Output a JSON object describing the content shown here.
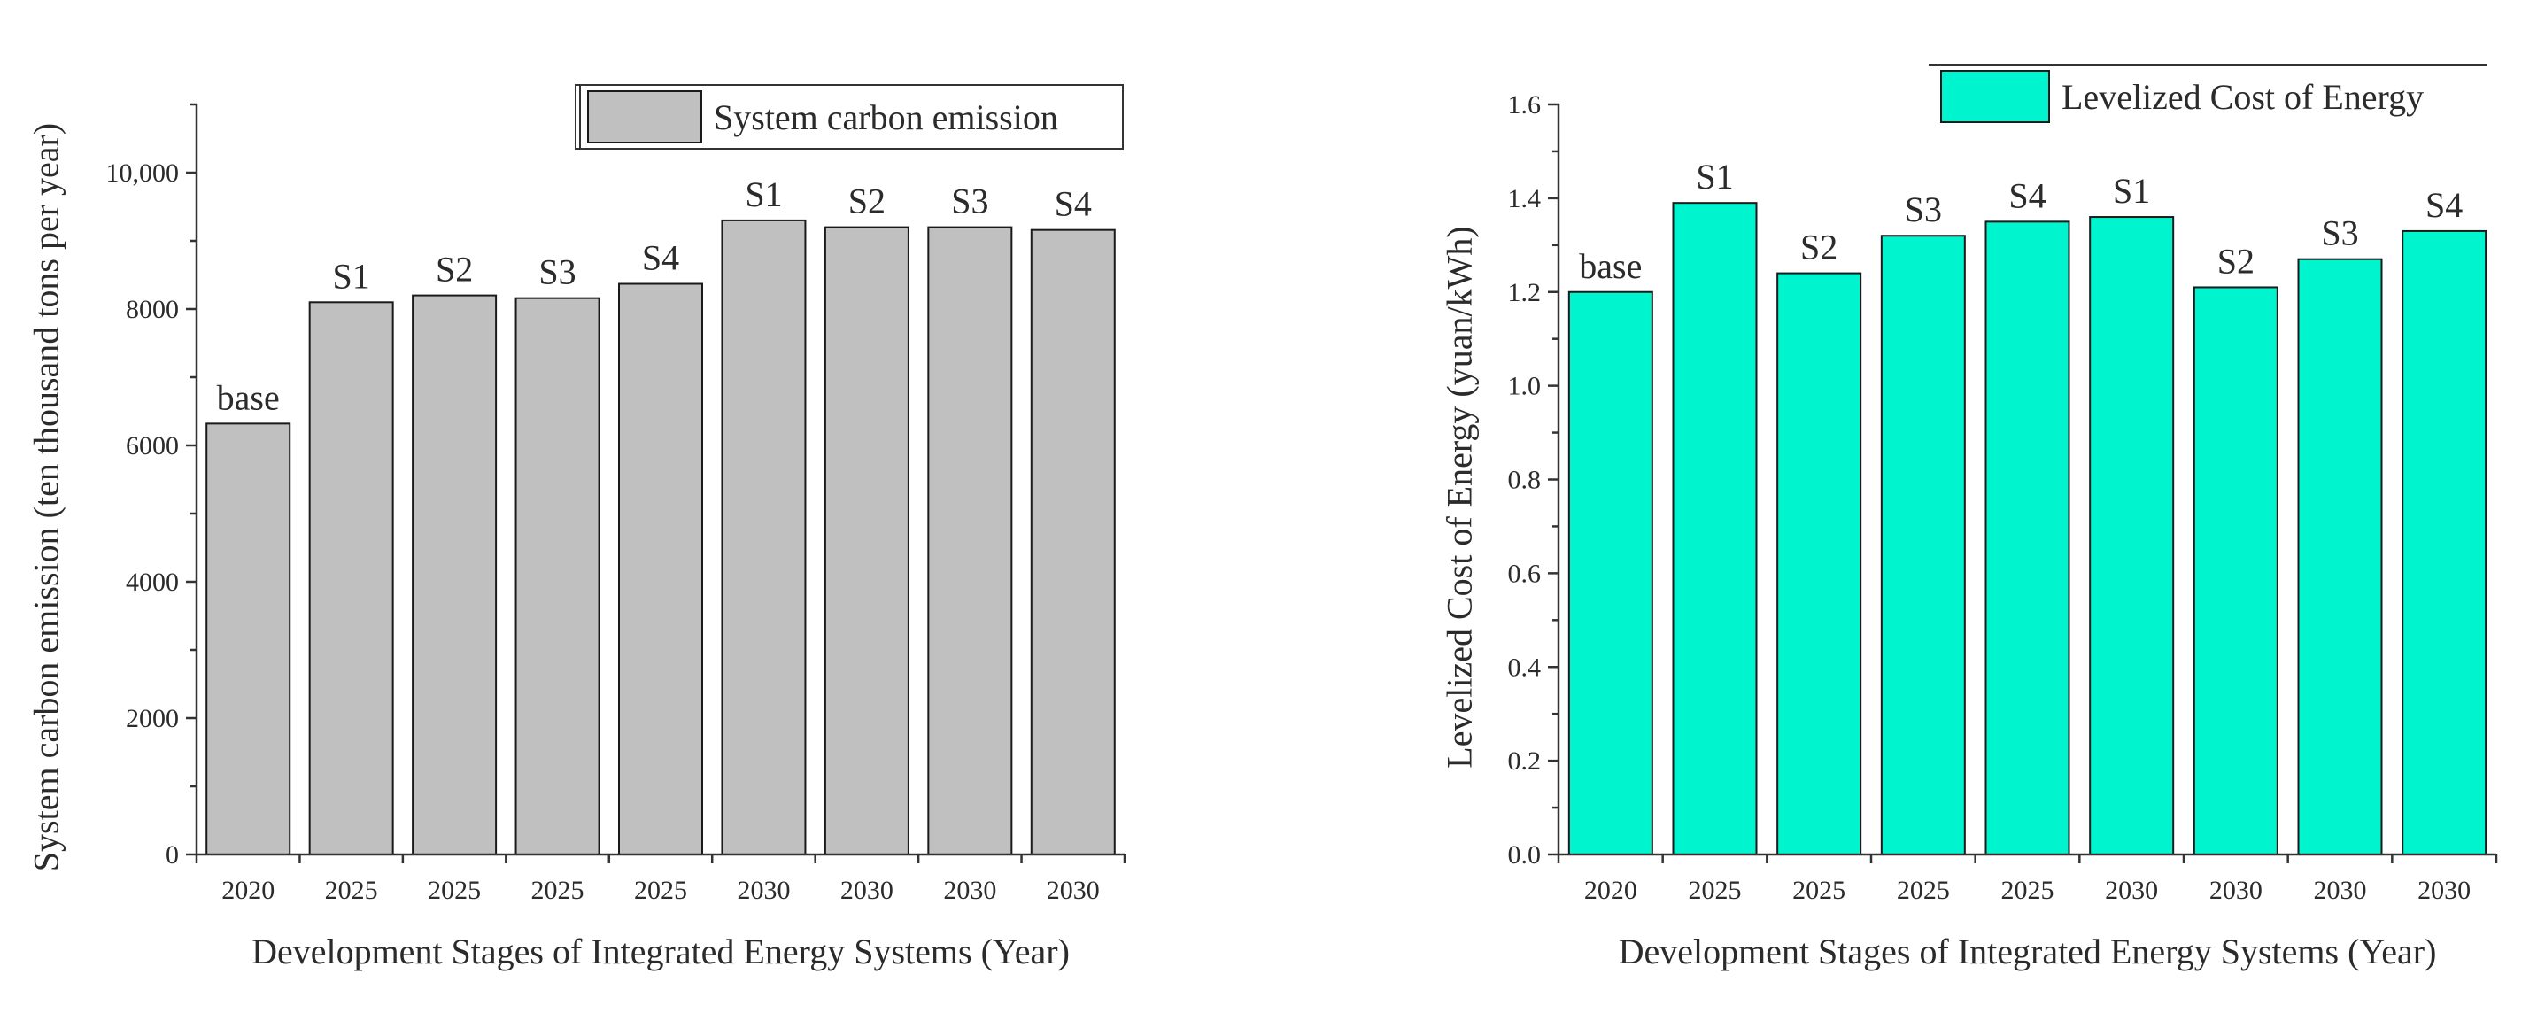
{
  "chart_data": [
    {
      "type": "bar",
      "legend": "System carbon emission",
      "legend_position": "top-right",
      "xlabel": "Development Stages of Integrated Energy Systems (Year)",
      "ylabel": "System carbon emission (ten thousand tons per year)",
      "ylim": [
        0,
        11000
      ],
      "yticks": [
        "0",
        "2000",
        "4000",
        "6000",
        "8000",
        "10,000"
      ],
      "ytick_values": [
        0,
        2000,
        4000,
        6000,
        8000,
        10000
      ],
      "categories": [
        "2020",
        "2025",
        "2025",
        "2025",
        "2025",
        "2030",
        "2030",
        "2030",
        "2030"
      ],
      "bar_labels": [
        "base",
        "S1",
        "S2",
        "S3",
        "S4",
        "S1",
        "S2",
        "S3",
        "S4"
      ],
      "values": [
        6320,
        8100,
        8200,
        8160,
        8370,
        9300,
        9200,
        9200,
        9160
      ],
      "grid": false,
      "color": "#c0c0c0"
    },
    {
      "type": "bar",
      "legend": "Levelized Cost of Energy",
      "legend_position": "top-right",
      "xlabel": "Development Stages of Integrated Energy Systems (Year)",
      "ylabel": "Levelized Cost of Energy (yuan/kWh)",
      "ylim": [
        0,
        1.6
      ],
      "yticks": [
        "0.0",
        "0.2",
        "0.4",
        "0.6",
        "0.8",
        "1.0",
        "1.2",
        "1.4",
        "1.6"
      ],
      "ytick_values": [
        0,
        0.2,
        0.4,
        0.6,
        0.8,
        1.0,
        1.2,
        1.4,
        1.6
      ],
      "categories": [
        "2020",
        "2025",
        "2025",
        "2025",
        "2025",
        "2030",
        "2030",
        "2030",
        "2030"
      ],
      "bar_labels": [
        "base",
        "S1",
        "S2",
        "S3",
        "S4",
        "S1",
        "S2",
        "S3",
        "S4"
      ],
      "values": [
        1.2,
        1.39,
        1.24,
        1.32,
        1.35,
        1.36,
        1.21,
        1.27,
        1.33
      ],
      "grid": false,
      "color": "#00f5cf"
    }
  ]
}
